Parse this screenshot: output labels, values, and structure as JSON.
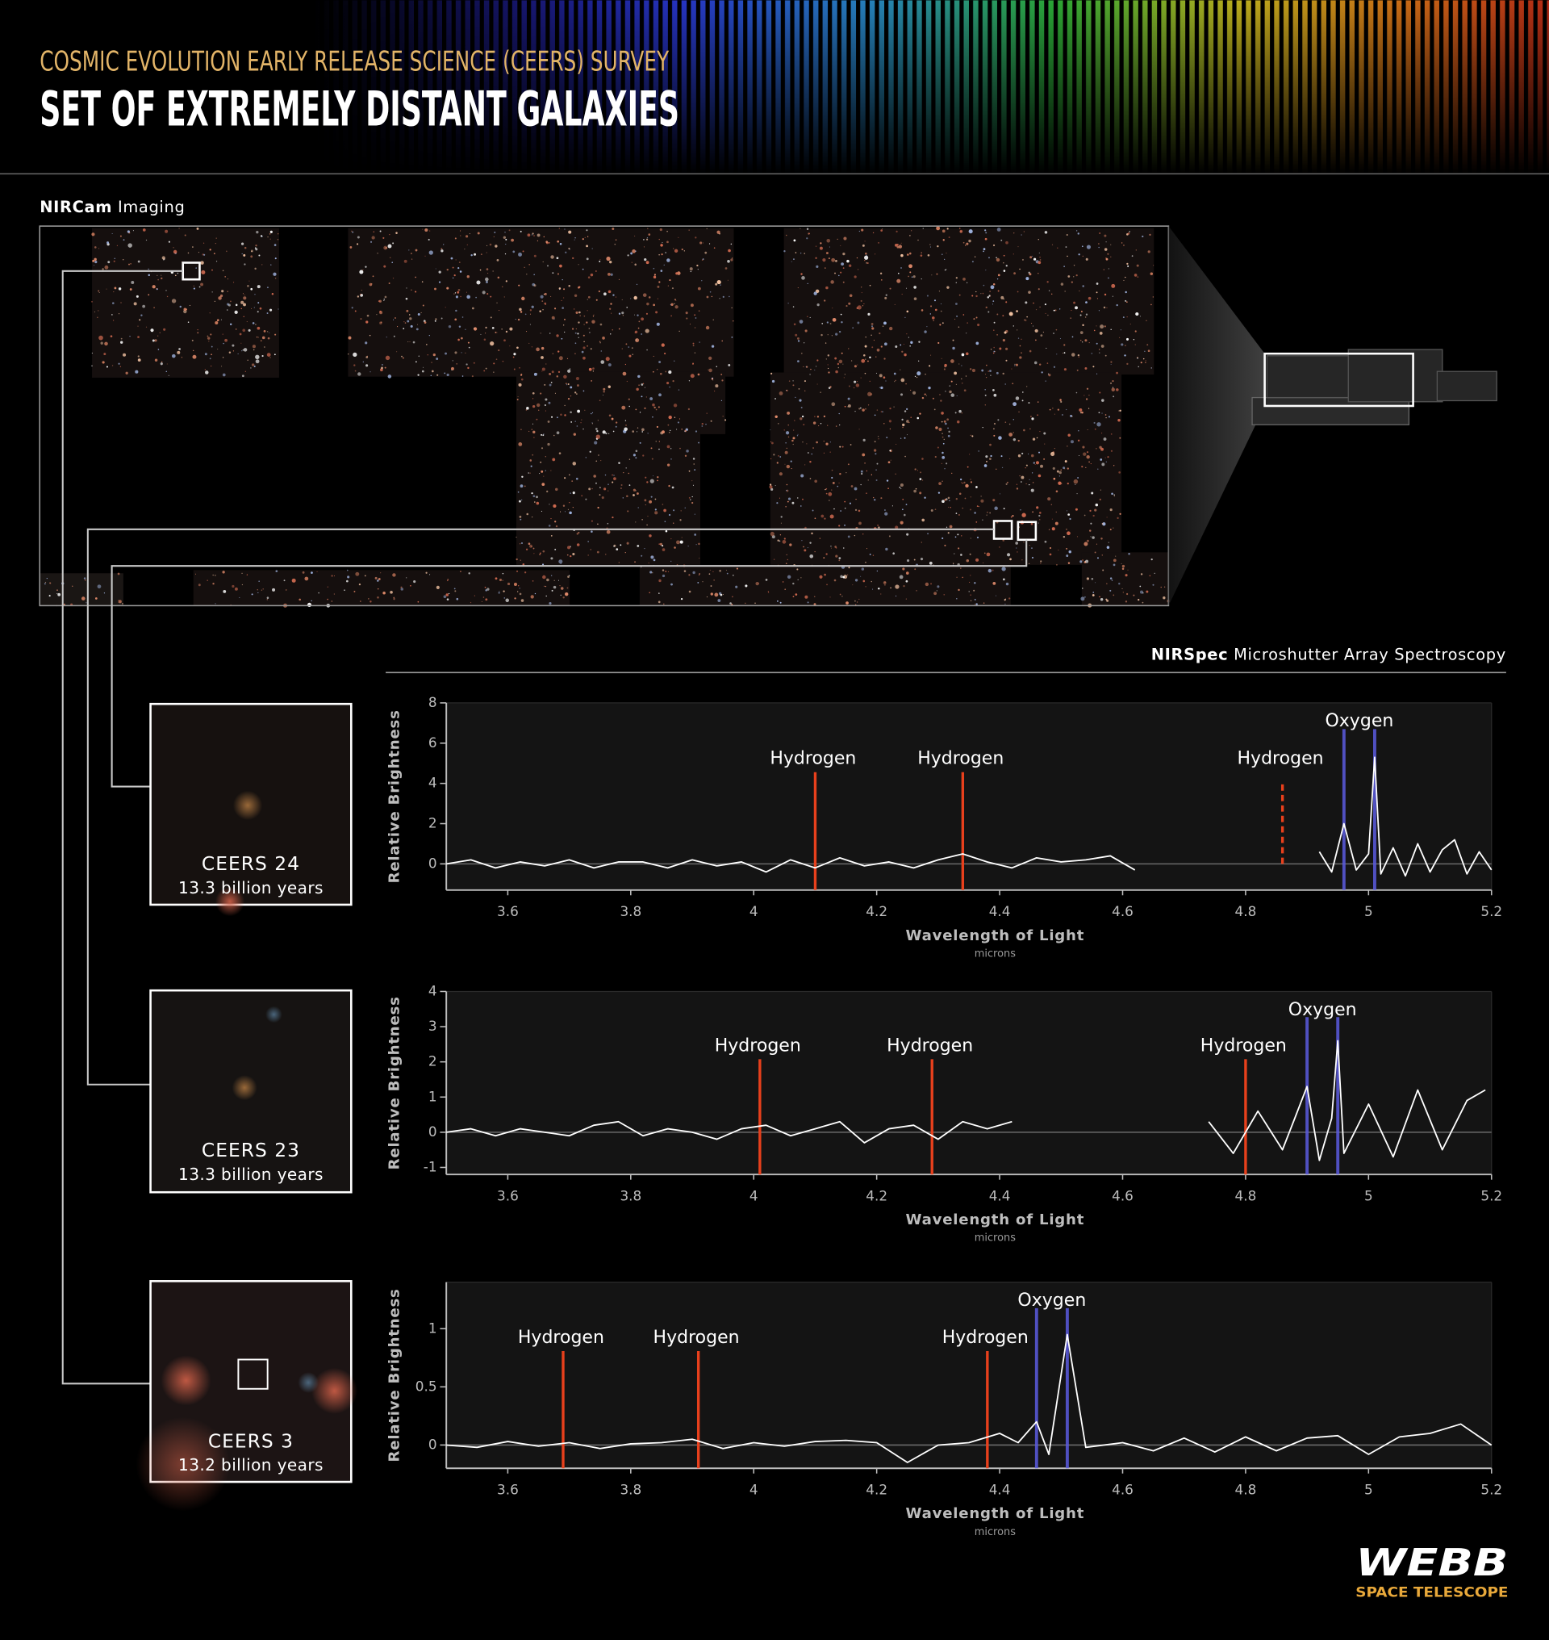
{
  "header": {
    "kicker": "COSMIC EVOLUTION EARLY RELEASE SCIENCE (CEERS) SURVEY",
    "title": "SET OF EXTREMELY DISTANT GALAXIES"
  },
  "imaging": {
    "label_bold": "NIRCam",
    "label": "Imaging"
  },
  "spectroscopy": {
    "label_bold": "NIRSpec",
    "label": "Microshutter Array Spectroscopy"
  },
  "logo": {
    "name": "WEBB",
    "sub": "SPACE TELESCOPE"
  },
  "chart_data": [
    {
      "type": "line",
      "galaxy": {
        "name": "CEERS 24",
        "age": "13.3 billion years"
      },
      "ylabel": "Relative Brightness",
      "xlabel": "Wavelength of Light",
      "xunit": "microns",
      "xlim": [
        3.5,
        5.2
      ],
      "xticks": [
        3.6,
        3.8,
        4,
        4.2,
        4.4,
        4.6,
        4.8,
        5,
        5.2
      ],
      "ylim": [
        -1.3,
        8
      ],
      "yticks": [
        0,
        2,
        4,
        6,
        8
      ],
      "color": "#ffffff",
      "x": [
        3.5,
        3.54,
        3.58,
        3.62,
        3.66,
        3.7,
        3.74,
        3.78,
        3.82,
        3.86,
        3.9,
        3.94,
        3.98,
        4.02,
        4.06,
        4.1,
        4.14,
        4.18,
        4.22,
        4.26,
        4.3,
        4.34,
        4.38,
        4.42,
        4.46,
        4.5,
        4.54,
        4.58,
        4.62,
        4.75,
        4.92,
        4.94,
        4.96,
        4.98,
        5.0,
        5.01,
        5.02,
        5.04,
        5.06,
        5.08,
        5.1,
        5.12,
        5.14,
        5.16,
        5.18,
        5.2
      ],
      "values": [
        0,
        0.2,
        -0.2,
        0.1,
        -0.1,
        0.2,
        -0.2,
        0.1,
        0.1,
        -0.2,
        0.2,
        -0.1,
        0.1,
        -0.4,
        0.2,
        -0.2,
        0.3,
        -0.1,
        0.1,
        -0.2,
        0.2,
        0.5,
        0.1,
        -0.2,
        0.3,
        0.1,
        0.2,
        0.4,
        -0.3,
        null,
        0.6,
        -0.4,
        2.0,
        -0.3,
        0.5,
        5.3,
        -0.5,
        0.8,
        -0.6,
        1.0,
        -0.4,
        0.7,
        1.2,
        -0.5,
        0.6,
        -0.3
      ],
      "hydrogen": [
        {
          "label": "Hydrogen",
          "x": 4.1,
          "color": "#e8401c"
        },
        {
          "label": "Hydrogen",
          "x": 4.34,
          "color": "#e8401c"
        },
        {
          "label": "Hydrogen",
          "x": 4.86,
          "color": "#e8401c",
          "dashed": true
        }
      ],
      "oxygen": {
        "label": "Oxygen",
        "x": [
          4.96,
          5.01
        ],
        "color": "#5b5be0"
      }
    },
    {
      "type": "line",
      "galaxy": {
        "name": "CEERS 23",
        "age": "13.3 billion years"
      },
      "ylabel": "Relative Brightness",
      "xlabel": "Wavelength of Light",
      "xunit": "microns",
      "xlim": [
        3.5,
        5.2
      ],
      "xticks": [
        3.6,
        3.8,
        4,
        4.2,
        4.4,
        4.6,
        4.8,
        5,
        5.2
      ],
      "ylim": [
        -1.2,
        4
      ],
      "yticks": [
        -1,
        0,
        1,
        2,
        3,
        4
      ],
      "color": "#ffffff",
      "x": [
        3.5,
        3.54,
        3.58,
        3.62,
        3.66,
        3.7,
        3.74,
        3.78,
        3.82,
        3.86,
        3.9,
        3.94,
        3.98,
        4.02,
        4.06,
        4.1,
        4.14,
        4.18,
        4.22,
        4.26,
        4.3,
        4.34,
        4.38,
        4.42,
        4.58,
        4.74,
        4.78,
        4.82,
        4.86,
        4.88,
        4.9,
        4.92,
        4.94,
        4.95,
        4.96,
        5.0,
        5.04,
        5.08,
        5.12,
        5.16,
        5.19
      ],
      "values": [
        0,
        0.1,
        -0.1,
        0.1,
        0,
        -0.1,
        0.2,
        0.3,
        -0.1,
        0.1,
        0,
        -0.2,
        0.1,
        0.2,
        -0.1,
        0.1,
        0.3,
        -0.3,
        0.1,
        0.2,
        -0.2,
        0.3,
        0.1,
        0.3,
        null,
        0.3,
        -0.6,
        0.6,
        -0.5,
        0.4,
        1.3,
        -0.8,
        0.4,
        2.6,
        -0.6,
        0.8,
        -0.7,
        1.2,
        -0.5,
        0.9,
        1.2
      ],
      "hydrogen": [
        {
          "label": "Hydrogen",
          "x": 4.01,
          "color": "#e8401c"
        },
        {
          "label": "Hydrogen",
          "x": 4.29,
          "color": "#e8401c"
        },
        {
          "label": "Hydrogen",
          "x": 4.8,
          "color": "#e8401c"
        }
      ],
      "oxygen": {
        "label": "Oxygen",
        "x": [
          4.9,
          4.95
        ],
        "color": "#5b5be0"
      }
    },
    {
      "type": "line",
      "galaxy": {
        "name": "CEERS 3",
        "age": "13.2 billion years"
      },
      "ylabel": "Relative Brightness",
      "xlabel": "Wavelength of Light",
      "xunit": "microns",
      "xlim": [
        3.5,
        5.2
      ],
      "xticks": [
        3.6,
        3.8,
        4,
        4.2,
        4.4,
        4.6,
        4.8,
        5,
        5.2
      ],
      "ylim": [
        -0.2,
        1.4
      ],
      "yticks": [
        0,
        0.5,
        1
      ],
      "color": "#ffffff",
      "x": [
        3.5,
        3.55,
        3.6,
        3.65,
        3.7,
        3.75,
        3.8,
        3.85,
        3.9,
        3.95,
        4,
        4.05,
        4.1,
        4.15,
        4.2,
        4.25,
        4.3,
        4.35,
        4.4,
        4.43,
        4.46,
        4.48,
        4.51,
        4.54,
        4.6,
        4.65,
        4.7,
        4.75,
        4.8,
        4.85,
        4.9,
        4.95,
        5,
        5.05,
        5.1,
        5.15,
        5.2
      ],
      "values": [
        0,
        -0.02,
        0.03,
        -0.01,
        0.02,
        -0.03,
        0.01,
        0.02,
        0.05,
        -0.03,
        0.02,
        -0.01,
        0.03,
        0.04,
        0.02,
        -0.15,
        0,
        0.02,
        0.1,
        0.02,
        0.2,
        -0.08,
        0.95,
        -0.02,
        0.02,
        -0.05,
        0.06,
        -0.06,
        0.07,
        -0.05,
        0.06,
        0.08,
        -0.08,
        0.07,
        0.1,
        0.18,
        0
      ],
      "hydrogen": [
        {
          "label": "Hydrogen",
          "x": 3.69,
          "color": "#e8401c"
        },
        {
          "label": "Hydrogen",
          "x": 3.91,
          "color": "#e8401c"
        },
        {
          "label": "Hydrogen",
          "x": 4.38,
          "color": "#e8401c"
        }
      ],
      "oxygen": {
        "label": "Oxygen",
        "x": [
          4.46,
          4.51
        ],
        "color": "#5b5be0"
      }
    }
  ]
}
